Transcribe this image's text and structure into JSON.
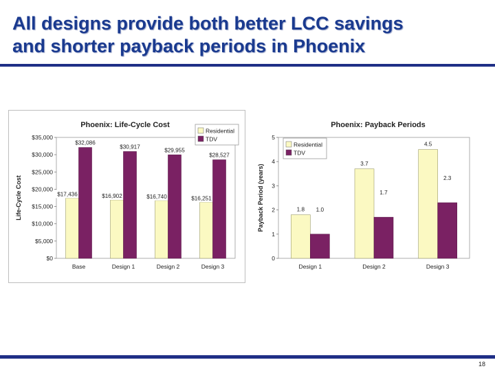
{
  "slide": {
    "title_lines": [
      "All designs provide both better LCC savings",
      "and shorter payback periods in Phoenix"
    ],
    "page_number": "18"
  },
  "colors": {
    "title": "#1a3a8f",
    "rule": "#1f2f86",
    "residential": "#fbf9c2",
    "tdv": "#7a2163"
  },
  "chart_data": [
    {
      "type": "bar",
      "title": "Phoenix: Life-Cycle Cost",
      "ylabel": "Life-Cycle Cost",
      "xlabel": "",
      "categories": [
        "Base",
        "Design 1",
        "Design 2",
        "Design 3"
      ],
      "series": [
        {
          "name": "Residential",
          "color": "#fbf9c2",
          "values": [
            17436,
            16902,
            16740,
            16251
          ],
          "labels": [
            "$17,436",
            "$16,902",
            "$16,740",
            "$16,251"
          ]
        },
        {
          "name": "TDV",
          "color": "#7a2163",
          "values": [
            32086,
            30917,
            29955,
            28527
          ],
          "labels": [
            "$32,086",
            "$30,917",
            "$29,955",
            "$28,527"
          ]
        }
      ],
      "ylim": [
        0,
        35000
      ],
      "yticks": [
        "$0",
        "$5,000",
        "$10,000",
        "$15,000",
        "$20,000",
        "$25,000",
        "$30,000",
        "$35,000"
      ],
      "grid": false,
      "legend": "top-right"
    },
    {
      "type": "bar",
      "title": "Phoenix: Payback Periods",
      "ylabel": "Payback Period (years)",
      "xlabel": "",
      "categories": [
        "Design 1",
        "Design 2",
        "Design 3"
      ],
      "series": [
        {
          "name": "Residential",
          "color": "#fbf9c2",
          "values": [
            1.8,
            3.7,
            4.5
          ],
          "labels": [
            "1.8",
            "3.7",
            "4.5"
          ]
        },
        {
          "name": "TDV",
          "color": "#7a2163",
          "values": [
            1.0,
            1.7,
            2.3
          ],
          "labels": [
            "1.0",
            "1.7",
            "2.3"
          ]
        }
      ],
      "ylim": [
        0,
        5
      ],
      "yticks": [
        "0",
        "1",
        "2",
        "3",
        "4",
        "5"
      ],
      "grid": false,
      "legend": "top-left"
    }
  ]
}
